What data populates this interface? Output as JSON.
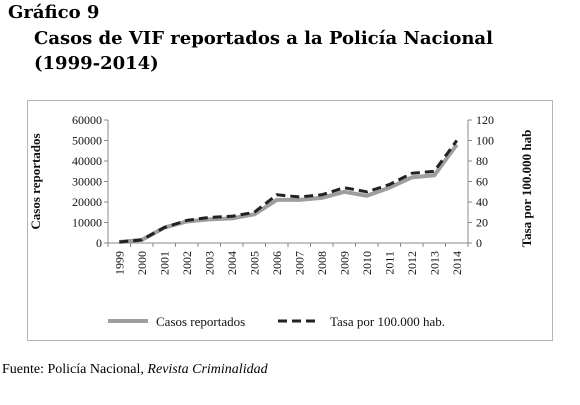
{
  "figure_label": "Gráfico 9",
  "title": "Casos de VIF reportados a la Policía Nacional (1999-2014)",
  "source": {
    "prefix": "Fuente: Policía Nacional, ",
    "publication": "Revista Criminalidad"
  },
  "chart_data": {
    "type": "line",
    "categories": [
      "1999",
      "2000",
      "2001",
      "2002",
      "2003",
      "2004",
      "2005",
      "2006",
      "2007",
      "2008",
      "2009",
      "2010",
      "2011",
      "2012",
      "2013",
      "2014"
    ],
    "series": [
      {
        "name": "Casos reportados",
        "axis": "left",
        "style": "solid",
        "color": "#9e9e9e",
        "values": [
          500,
          1500,
          7500,
          10500,
          11500,
          12000,
          14000,
          21000,
          21000,
          22000,
          25000,
          23000,
          27000,
          32000,
          33000,
          48000
        ]
      },
      {
        "name": "Tasa por 100.000 hab.",
        "axis": "right",
        "style": "dashed",
        "color": "#222222",
        "values": [
          1,
          3,
          15,
          22,
          25,
          26,
          30,
          47,
          45,
          47,
          54,
          50,
          57,
          68,
          70,
          100
        ]
      }
    ],
    "ylabel": "Casos reportados",
    "y2label": "Tasa por 100.000 hab",
    "ylim": [
      0,
      60000
    ],
    "y2lim": [
      0,
      120
    ],
    "yticks": [
      "0",
      "10000",
      "20000",
      "30000",
      "40000",
      "50000",
      "60000"
    ],
    "y2ticks": [
      "0",
      "20",
      "40",
      "60",
      "80",
      "100",
      "120"
    ],
    "legend": {
      "placement": "bottom"
    },
    "grid": false
  }
}
